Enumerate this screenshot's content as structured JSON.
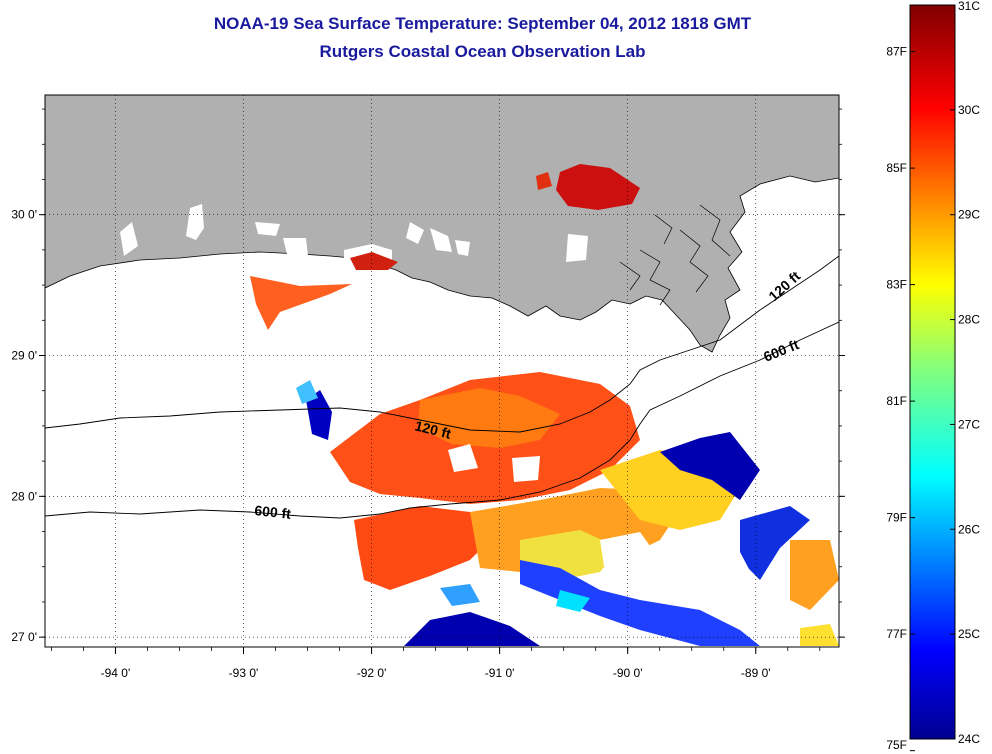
{
  "title": {
    "line1": "NOAA-19 Sea Surface Temperature:  September 04, 2012 1818 GMT",
    "line2": "Rutgers Coastal Ocean Observation Lab"
  },
  "map": {
    "lat_ticks": [
      {
        "value": 30,
        "label": "30 0'"
      },
      {
        "value": 29,
        "label": "29 0'"
      },
      {
        "value": 28,
        "label": "28 0'"
      },
      {
        "value": 27,
        "label": "27 0'"
      }
    ],
    "lon_ticks": [
      {
        "value": -94,
        "label": "-94 0'"
      },
      {
        "value": -93,
        "label": "-93 0'"
      },
      {
        "value": -92,
        "label": "-92 0'"
      },
      {
        "value": -91,
        "label": "-91 0'"
      },
      {
        "value": -90,
        "label": "-90 0'"
      },
      {
        "value": -89,
        "label": "-89 0'"
      }
    ],
    "contour_labels": [
      {
        "text": "120 ft"
      },
      {
        "text": "600 ft"
      },
      {
        "text": "120 ft"
      },
      {
        "text": "600 ft"
      }
    ],
    "colors": {
      "land": "#b0b0b0",
      "ocean": "#ffffff",
      "cold": "#0000a8",
      "warm": "#a80000"
    }
  },
  "colorbar": {
    "celsius_labels": [
      "31C",
      "30C",
      "29C",
      "28C",
      "27C",
      "26C",
      "25C",
      "24C"
    ],
    "fahrenheit_labels": [
      "87F",
      "85F",
      "83F",
      "81F",
      "79F",
      "77F",
      "75F"
    ],
    "range_c": [
      24,
      31
    ]
  }
}
